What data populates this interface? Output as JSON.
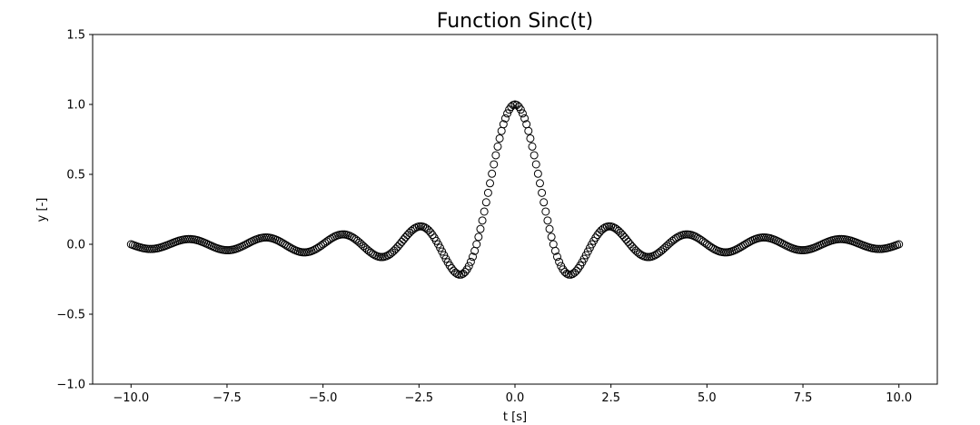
{
  "chart_data": {
    "type": "scatter",
    "title": "Function Sinc(t)",
    "xlabel": "t [s]",
    "ylabel": "y [-]",
    "xlim": [
      -11.0,
      11.0
    ],
    "ylim": [
      -1.0,
      1.5
    ],
    "xticks": [
      -10.0,
      -7.5,
      -5.0,
      -2.5,
      0.0,
      2.5,
      5.0,
      7.5,
      10.0
    ],
    "xtick_labels": [
      "−10.0",
      "−7.5",
      "−5.0",
      "−2.5",
      "0.0",
      "2.5",
      "5.0",
      "7.5",
      "10.0"
    ],
    "yticks": [
      -1.0,
      -0.5,
      0.0,
      0.5,
      1.0,
      1.5
    ],
    "ytick_labels": [
      "−1.0",
      "−0.5",
      "0.0",
      "0.5",
      "1.0",
      "1.5"
    ],
    "grid": false,
    "marker": "hollow circle",
    "marker_color": "#000000",
    "series": [
      {
        "function": "sin(pi*t)/(pi*t)",
        "x_start": -10.0,
        "x_end": 10.0,
        "point_count": 401
      }
    ]
  }
}
